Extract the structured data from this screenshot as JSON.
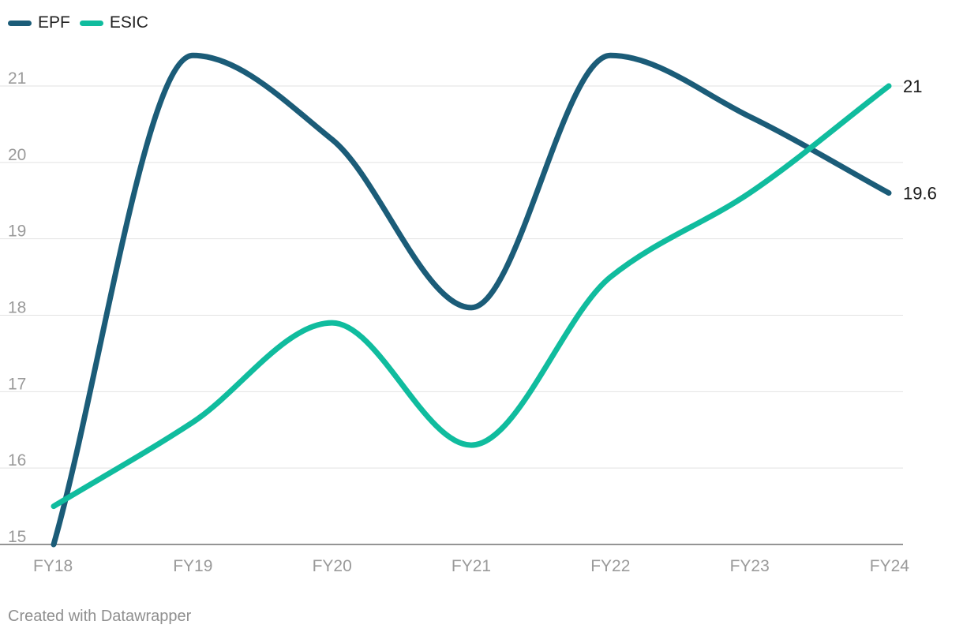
{
  "chart_data": {
    "type": "line",
    "categories": [
      "FY18",
      "FY19",
      "FY20",
      "FY21",
      "FY22",
      "FY23",
      "FY24"
    ],
    "series": [
      {
        "name": "EPF",
        "color": "#1b5c78",
        "values": [
          15.0,
          21.4,
          20.3,
          18.1,
          21.4,
          20.6,
          19.6
        ],
        "end_label": "19.6"
      },
      {
        "name": "ESIC",
        "color": "#10bc9e",
        "values": [
          15.5,
          16.6,
          17.9,
          16.3,
          18.5,
          19.6,
          21.0
        ],
        "end_label": "21"
      }
    ],
    "y_ticks": [
      "15",
      "16",
      "17",
      "18",
      "19",
      "20",
      "21"
    ],
    "ylim": [
      15,
      21.4
    ],
    "grid": true,
    "legend_position": "top-left",
    "line_style": "smooth"
  },
  "footer": {
    "credit": "Created with Datawrapper"
  }
}
